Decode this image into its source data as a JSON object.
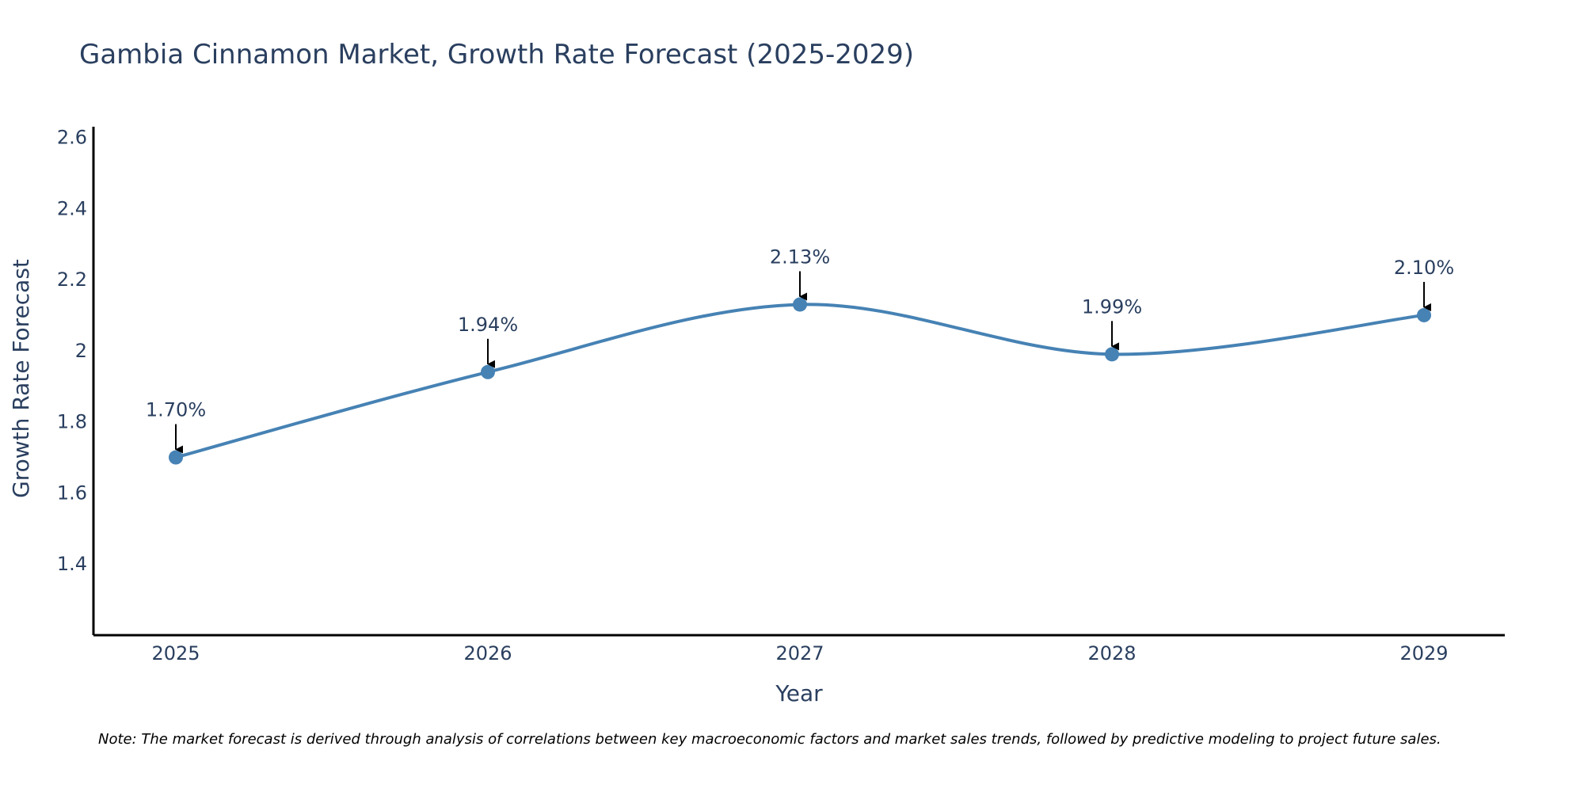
{
  "chart_data": {
    "type": "line",
    "title": "Gambia Cinnamon Market, Growth Rate Forecast (2025-2029)",
    "xlabel": "Year",
    "ylabel": "Growth Rate Forecast",
    "categories": [
      "2025",
      "2026",
      "2027",
      "2028",
      "2029"
    ],
    "values": [
      1.7,
      1.94,
      2.13,
      1.99,
      2.1
    ],
    "data_labels": [
      "1.70%",
      "1.94%",
      "2.13%",
      "1.99%",
      "2.10%"
    ],
    "ylim": [
      1.2,
      2.63
    ],
    "yticks": [
      1.4,
      1.6,
      1.8,
      2.0,
      2.2,
      2.4,
      2.6
    ],
    "ytick_labels": [
      "1.4",
      "1.6",
      "1.8",
      "2",
      "2.2",
      "2.4",
      "2.6"
    ],
    "grid": false,
    "line_color": "#4682b4",
    "marker_color": "#4682b4",
    "annotation_arrow_color": "#000000",
    "note": "Note: The market forecast is derived through analysis of correlations between key macroeconomic factors and market sales trends, followed by predictive modeling to project future sales."
  }
}
